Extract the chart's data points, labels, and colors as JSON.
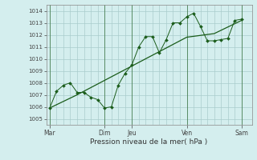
{
  "title": "",
  "xlabel": "Pression niveau de la mer( hPa )",
  "bg_color": "#d4eeee",
  "grid_color": "#aacccc",
  "line_color": "#1a5c1a",
  "marker_color": "#1a5c1a",
  "ylim": [
    1004.5,
    1014.5
  ],
  "yticks": [
    1005,
    1006,
    1007,
    1008,
    1009,
    1010,
    1011,
    1012,
    1013,
    1014
  ],
  "day_labels": [
    "Mar",
    "Dim",
    "Jeu",
    "Ven",
    "Sam"
  ],
  "day_positions": [
    0,
    8,
    12,
    20,
    28
  ],
  "xlim": [
    -0.5,
    29.5
  ],
  "line1_x": [
    0,
    1,
    2,
    3,
    4,
    5,
    6,
    7,
    8,
    9,
    10,
    11,
    12,
    13,
    14,
    15,
    16,
    17,
    18,
    19,
    20,
    21,
    22,
    23,
    24,
    25,
    26,
    27,
    28
  ],
  "line1_y": [
    1005.9,
    1007.3,
    1007.8,
    1008.0,
    1007.2,
    1007.2,
    1006.8,
    1006.6,
    1005.9,
    1006.0,
    1007.8,
    1008.8,
    1009.5,
    1011.0,
    1011.85,
    1011.85,
    1010.5,
    1011.6,
    1013.0,
    1013.0,
    1013.5,
    1013.8,
    1012.7,
    1011.5,
    1011.5,
    1011.6,
    1011.7,
    1013.2,
    1013.3
  ],
  "line2_x": [
    0,
    4,
    8,
    12,
    16,
    20,
    24,
    28
  ],
  "line2_y": [
    1005.9,
    1007.0,
    1008.2,
    1009.4,
    1010.6,
    1011.8,
    1012.1,
    1013.2
  ],
  "vline_positions": [
    0,
    8,
    12,
    20,
    28
  ],
  "minor_xtick_positions": [
    1,
    2,
    3,
    4,
    5,
    6,
    7,
    9,
    10,
    11,
    13,
    14,
    15,
    16,
    17,
    18,
    19,
    21,
    22,
    23,
    24,
    25,
    26,
    27
  ]
}
